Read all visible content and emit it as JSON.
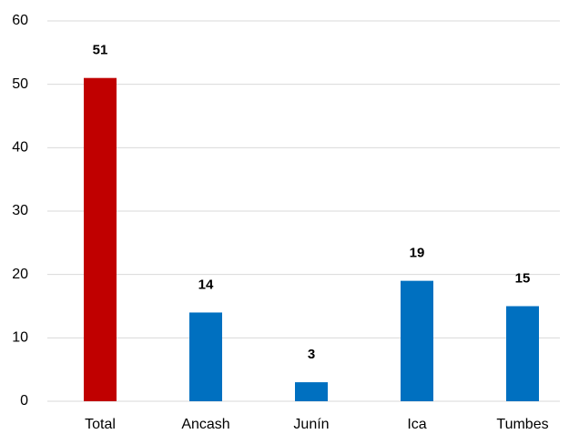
{
  "chart_data": {
    "type": "bar",
    "categories": [
      "Total",
      "Ancash",
      "Junín",
      "Ica",
      "Tumbes"
    ],
    "values": [
      51,
      14,
      3,
      19,
      15
    ],
    "colors": [
      "#c00000",
      "#0070c0",
      "#0070c0",
      "#0070c0",
      "#0070c0"
    ],
    "ylim": [
      0,
      60
    ],
    "yticks": [
      0,
      10,
      20,
      30,
      40,
      50,
      60
    ],
    "grid": true
  }
}
